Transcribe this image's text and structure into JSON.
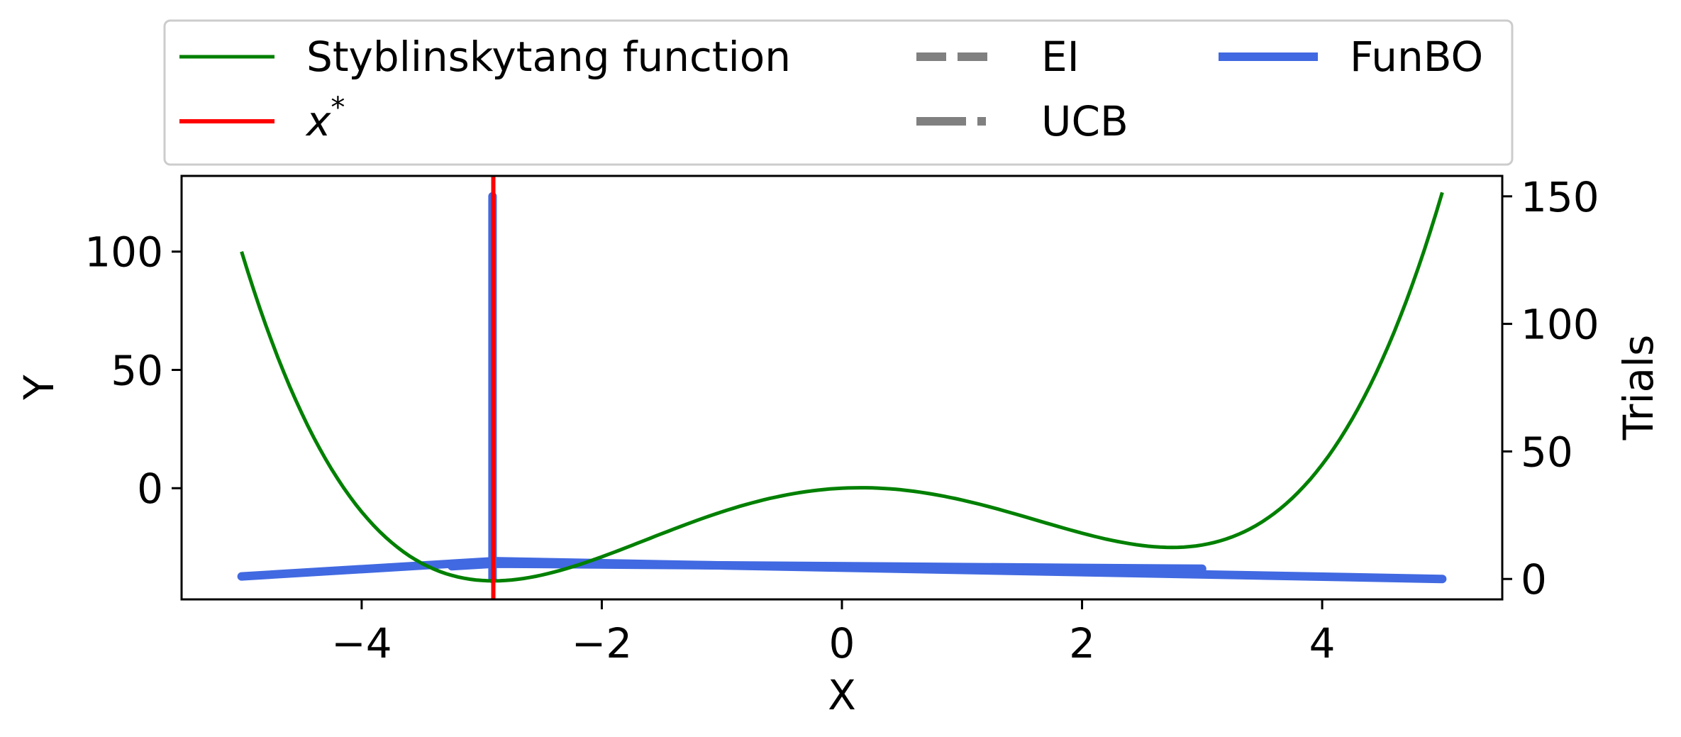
{
  "chart_data": {
    "type": "line",
    "title": "",
    "xlabel": "X",
    "ylabel": "Y",
    "y2label": "Trials",
    "xlim": [
      -5.5,
      5.5
    ],
    "ylim": [
      -47,
      132
    ],
    "y2lim": [
      -8,
      158
    ],
    "xticks": [
      -4,
      -2,
      0,
      2,
      4
    ],
    "xtick_labels": [
      "−4",
      "−2",
      "0",
      "2",
      "4"
    ],
    "yticks": [
      0,
      50,
      100
    ],
    "ytick_labels": [
      "0",
      "50",
      "100"
    ],
    "y2ticks": [
      0,
      50,
      100,
      150
    ],
    "y2tick_labels": [
      "0",
      "50",
      "100",
      "150"
    ],
    "grid": false,
    "legend_placement": "above",
    "legend": [
      {
        "key": "function",
        "label": "Styblinskytang function",
        "color": "#008000",
        "style": "solid"
      },
      {
        "key": "xstar",
        "label": "x",
        "sup": "*",
        "color": "#ff0000",
        "style": "solid"
      },
      {
        "key": "ei",
        "label": "EI",
        "color": "#808080",
        "style": "dashed"
      },
      {
        "key": "ucb",
        "label": "UCB",
        "color": "#808080",
        "style": "dashdot"
      },
      {
        "key": "funbo",
        "label": "FunBO",
        "color": "#4169e1",
        "style": "solid-thick"
      }
    ],
    "function": {
      "name": "Styblinskytang function",
      "x_range": [
        -5,
        5
      ],
      "samples": 201
    },
    "x_star": -2.9035,
    "series": [
      {
        "key": "funbo",
        "name": "FunBO",
        "axis": "y2",
        "x": [
          -5,
          -2.9,
          5
        ],
        "values": [
          1,
          7,
          0
        ]
      },
      {
        "key": "funbo",
        "name": "FunBO",
        "axis": "y2",
        "x": [
          -3.25,
          -2.9,
          3.0
        ],
        "values": [
          5,
          6,
          4
        ]
      },
      {
        "key": "funbo",
        "name": "FunBO",
        "axis": "y2",
        "x": [
          -2.91,
          -2.91
        ],
        "values": [
          0,
          150
        ]
      }
    ],
    "colors": {
      "function": "#008000",
      "xstar": "#ff0000",
      "funbo": "#4169e1",
      "baseline": "#808080"
    }
  }
}
